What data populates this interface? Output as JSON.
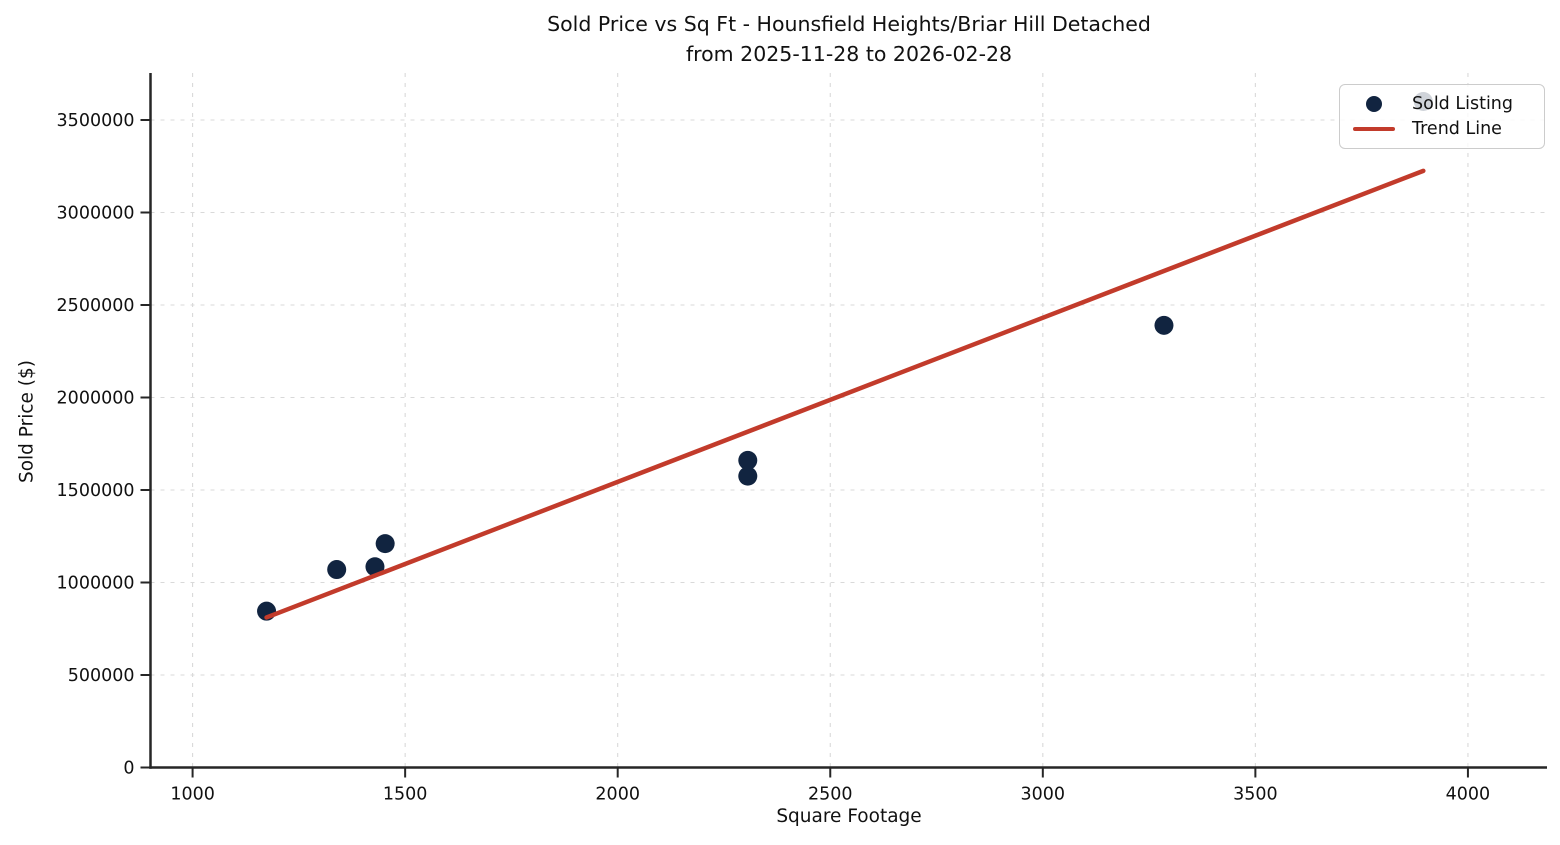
{
  "chart_data": {
    "type": "scatter",
    "title": "Sold Price vs Sq Ft - Hounsfield Heights/Briar Hill Detached",
    "subtitle": "from 2025-11-28 to 2026-02-28",
    "xlabel": "Square Footage",
    "ylabel": "Sold Price ($)",
    "xlim": [
      901,
      4186
    ],
    "ylim": [
      0,
      3754000
    ],
    "xticks": [
      1000,
      1500,
      2000,
      2500,
      3000,
      3500,
      4000
    ],
    "yticks": [
      0,
      500000,
      1000000,
      1500000,
      2000000,
      2500000,
      3000000,
      3500000
    ],
    "grid": true,
    "legend_position": "upper right",
    "colors": {
      "point": "#112440",
      "trend": "#c23b2b",
      "grid": "#d9d9d9",
      "axis": "#262626",
      "text": "#111111"
    },
    "series": [
      {
        "name": "Sold Listing",
        "kind": "scatter",
        "color": "#112440",
        "points": [
          {
            "x": 1174,
            "y": 845000
          },
          {
            "x": 1339,
            "y": 1070000
          },
          {
            "x": 1429,
            "y": 1085000
          },
          {
            "x": 1453,
            "y": 1210000
          },
          {
            "x": 2306,
            "y": 1575000
          },
          {
            "x": 2306,
            "y": 1660000
          },
          {
            "x": 3285,
            "y": 2390000
          },
          {
            "x": 3895,
            "y": 3600000
          }
        ]
      },
      {
        "name": "Trend Line",
        "kind": "line",
        "color": "#c23b2b",
        "points": [
          {
            "x": 1174,
            "y": 811000
          },
          {
            "x": 3895,
            "y": 3225000
          }
        ]
      }
    ]
  }
}
